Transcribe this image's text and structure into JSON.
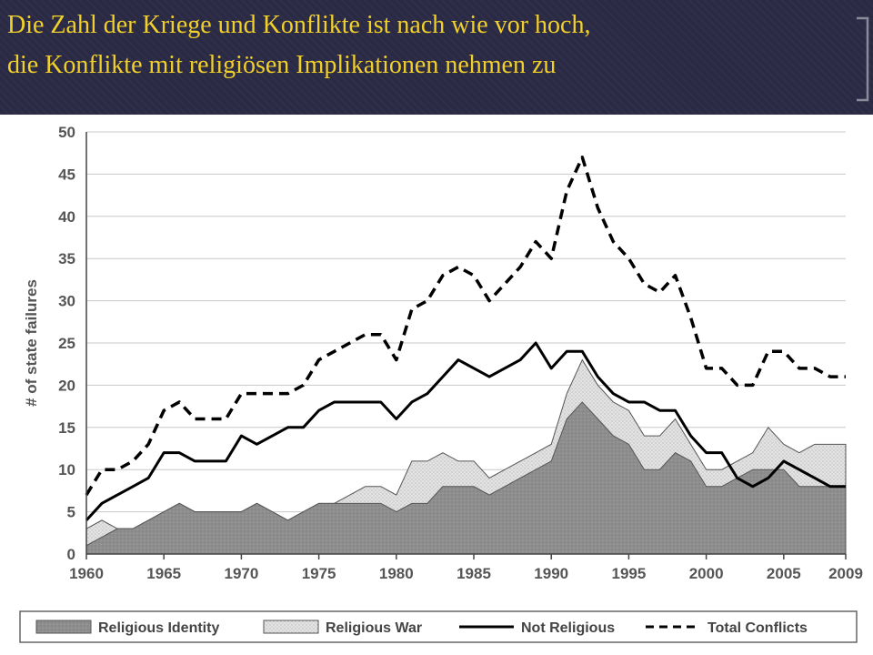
{
  "slide": {
    "title_line_1": "Die Zahl der Kriege und Konflikte ist nach wie vor hoch,",
    "title_line_2": "die Konflikte mit religiösen Implikationen nehmen zu",
    "banner_color": "#2b2a45",
    "title_color": "#f2d02a"
  },
  "chart_data": {
    "type": "area",
    "ylabel": "# of state failures",
    "xlabel": "",
    "xlim": [
      1960,
      2009
    ],
    "ylim": [
      0,
      50
    ],
    "x_ticks": [
      1960,
      1965,
      1970,
      1975,
      1980,
      1985,
      1990,
      1995,
      2000,
      2005,
      2009
    ],
    "y_ticks": [
      0,
      5,
      10,
      15,
      20,
      25,
      30,
      35,
      40,
      45,
      50
    ],
    "grid": "horizontal",
    "legend_position": "bottom",
    "x": [
      1960,
      1961,
      1962,
      1963,
      1964,
      1965,
      1966,
      1967,
      1968,
      1969,
      1970,
      1971,
      1972,
      1973,
      1974,
      1975,
      1976,
      1977,
      1978,
      1979,
      1980,
      1981,
      1982,
      1983,
      1984,
      1985,
      1986,
      1987,
      1988,
      1989,
      1990,
      1991,
      1992,
      1993,
      1994,
      1995,
      1996,
      1997,
      1998,
      1999,
      2000,
      2001,
      2002,
      2003,
      2004,
      2005,
      2006,
      2007,
      2008,
      2009
    ],
    "series": [
      {
        "name": "Religious Identity",
        "style": "area",
        "color": "#8c8c8c",
        "values": [
          1,
          2,
          3,
          3,
          4,
          5,
          6,
          5,
          5,
          5,
          5,
          6,
          5,
          4,
          5,
          6,
          6,
          6,
          6,
          6,
          5,
          6,
          6,
          8,
          8,
          8,
          7,
          8,
          9,
          10,
          11,
          16,
          18,
          16,
          14,
          13,
          10,
          10,
          12,
          11,
          8,
          8,
          9,
          10,
          10,
          10,
          8,
          8,
          8,
          8
        ]
      },
      {
        "name": "Religious War",
        "style": "area",
        "color": "#d9d9d9",
        "values": [
          3,
          4,
          3,
          3,
          4,
          5,
          6,
          5,
          5,
          5,
          5,
          6,
          5,
          4,
          5,
          6,
          6,
          7,
          8,
          8,
          7,
          11,
          11,
          12,
          11,
          11,
          9,
          10,
          11,
          12,
          13,
          19,
          23,
          20,
          18,
          17,
          14,
          14,
          16,
          13,
          10,
          10,
          11,
          12,
          15,
          13,
          12,
          13,
          13,
          13
        ]
      },
      {
        "name": "Not Religious",
        "style": "solid",
        "color": "#000000",
        "values": [
          4,
          6,
          7,
          8,
          9,
          12,
          12,
          11,
          11,
          11,
          14,
          13,
          14,
          15,
          15,
          17,
          18,
          18,
          18,
          18,
          16,
          18,
          19,
          21,
          23,
          22,
          21,
          22,
          23,
          25,
          22,
          24,
          24,
          21,
          19,
          18,
          18,
          17,
          17,
          14,
          12,
          12,
          9,
          8,
          9,
          11,
          10,
          9,
          8,
          8
        ]
      },
      {
        "name": "Total Conflicts",
        "style": "dashed",
        "color": "#000000",
        "values": [
          7,
          10,
          10,
          11,
          13,
          17,
          18,
          16,
          16,
          16,
          19,
          19,
          19,
          19,
          20,
          23,
          24,
          25,
          26,
          26,
          23,
          29,
          30,
          33,
          34,
          33,
          30,
          32,
          34,
          37,
          35,
          43,
          47,
          41,
          37,
          35,
          32,
          31,
          33,
          28,
          22,
          22,
          20,
          20,
          24,
          24,
          22,
          22,
          21,
          21
        ]
      }
    ]
  }
}
